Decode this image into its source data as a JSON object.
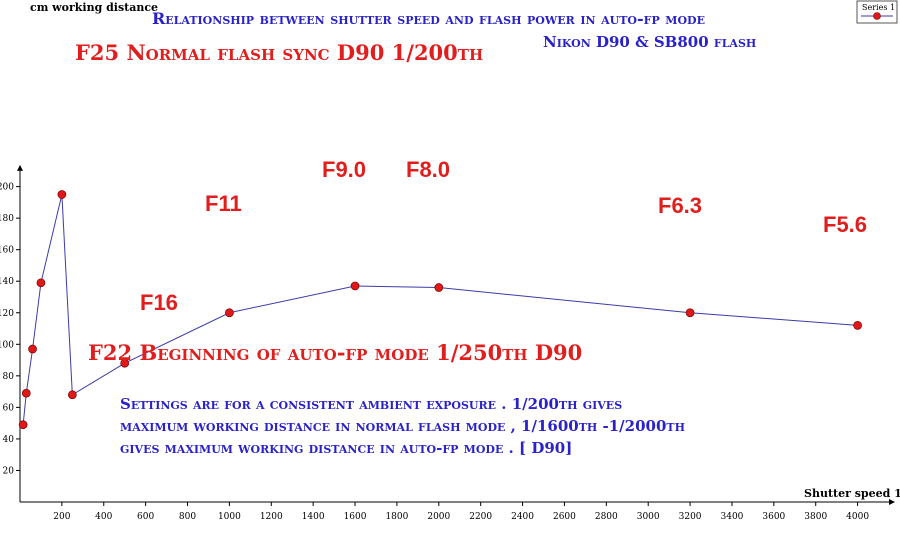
{
  "chart_data": {
    "type": "line",
    "title": "Relationship between shutter speed and flash power in auto-fp mode",
    "subtitle": "Nikon D90 & SB800 flash",
    "xlabel": "Shutter speed 1/x",
    "ylabel": "cm working distance",
    "xlim": [
      0,
      4150
    ],
    "ylim": [
      0,
      210
    ],
    "x_ticks": [
      200,
      400,
      600,
      800,
      1000,
      1200,
      1400,
      1600,
      1800,
      2000,
      2200,
      2400,
      2600,
      2800,
      3000,
      3200,
      3400,
      3600,
      3800,
      4000
    ],
    "y_ticks": [
      20,
      40,
      60,
      80,
      100,
      120,
      140,
      160,
      180,
      200
    ],
    "legend": {
      "position": "top-right",
      "entries": [
        "Series 1"
      ]
    },
    "series": [
      {
        "name": "Series 1",
        "color": "#3b3ba8",
        "marker_color": "#e01818",
        "x": [
          15,
          30,
          60,
          100,
          200,
          250,
          500,
          1000,
          1600,
          2000,
          3200,
          4000
        ],
        "y": [
          49,
          69,
          97,
          139,
          195,
          68,
          88,
          120,
          137,
          136,
          120,
          112
        ]
      }
    ],
    "annotations": [
      {
        "text": "F25 Normal flash sync D90 1/200th",
        "style": "sc"
      },
      {
        "text": "F22 Beginning of auto-fp mode 1/250th D90",
        "style": "sc"
      },
      {
        "text": "F16",
        "style": "plain"
      },
      {
        "text": "F11",
        "style": "plain"
      },
      {
        "text": "F9.0",
        "style": "plain"
      },
      {
        "text": "F8.0",
        "style": "plain"
      },
      {
        "text": "F6.3",
        "style": "plain"
      },
      {
        "text": "F5.6",
        "style": "plain"
      }
    ],
    "note": [
      "Settings are for a consistent ambient exposure . 1/200th gives",
      "maximum working distance in normal flash mode , 1/1600th -1/2000th",
      "gives maximum working distance in auto-fp mode . [ D90]"
    ]
  }
}
